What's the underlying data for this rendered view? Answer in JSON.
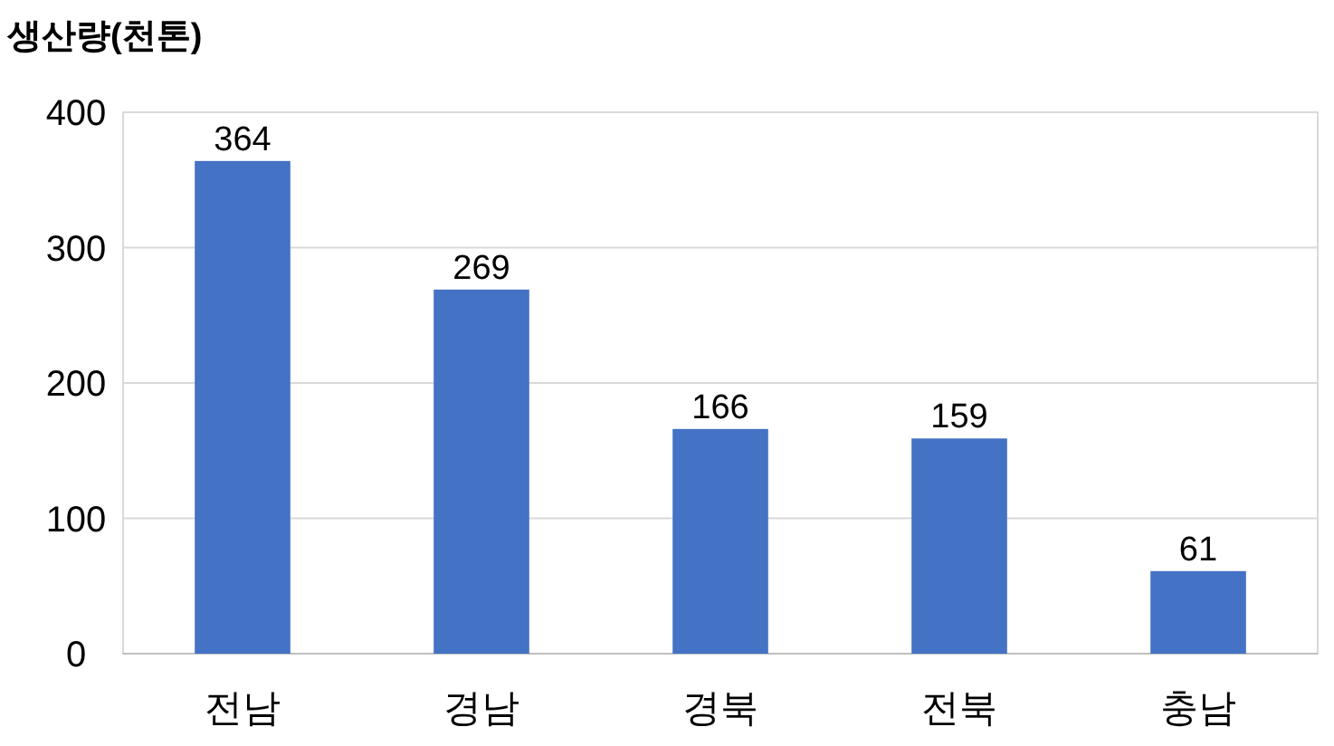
{
  "chart_data": {
    "type": "bar",
    "ylabel": "생산량(천톤)",
    "categories": [
      "전남",
      "경남",
      "경북",
      "전북",
      "충남"
    ],
    "values": [
      364,
      269,
      166,
      159,
      61
    ],
    "color": "#4472c4",
    "ylim": [
      0,
      400
    ],
    "yticks": [
      0,
      100,
      200,
      300,
      400
    ],
    "grid": "y",
    "data_labels": true
  }
}
